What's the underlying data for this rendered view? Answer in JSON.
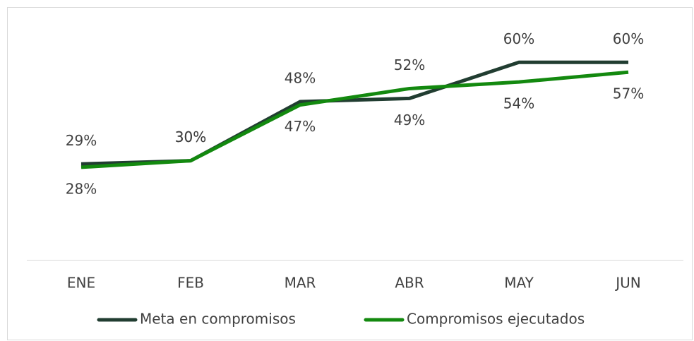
{
  "chart_data": {
    "type": "line",
    "categories": [
      "ENE",
      "FEB",
      "MAR",
      "ABR",
      "MAY",
      "JUN"
    ],
    "series": [
      {
        "name": "Meta en compromisos",
        "color": "#213d31",
        "values": [
          29,
          30,
          48,
          49,
          60,
          60
        ],
        "value_labels": [
          "29%",
          "30%",
          "48%",
          "49%",
          "60%",
          "60%"
        ]
      },
      {
        "name": "Compromisos ejecutados",
        "color": "#13890f",
        "values": [
          28,
          30,
          47,
          52,
          54,
          57
        ],
        "value_labels": [
          "28%",
          "30%",
          "47%",
          "52%",
          "54%",
          "57%"
        ]
      }
    ]
  }
}
